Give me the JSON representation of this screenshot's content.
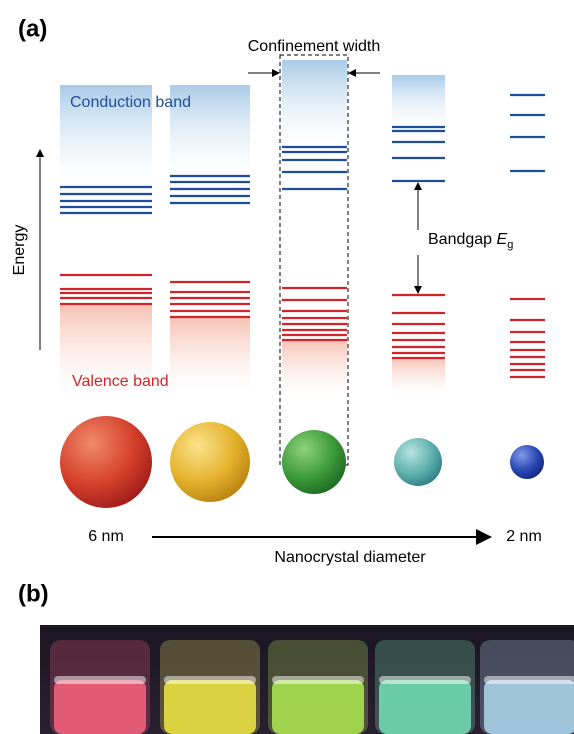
{
  "panel_a": {
    "label": "(a)",
    "confinement_label": "Confinement width",
    "conduction_label": "Conduction band",
    "valence_label": "Valence band",
    "energy_label": "Energy",
    "bandgap_label": {
      "text": "Bandgap",
      "symbol": "E",
      "subscript": "g"
    },
    "size_large": "6 nm",
    "size_small": "2 nm",
    "diameter_label": "Nanocrystal diameter"
  },
  "panel_b": {
    "label": "(b)"
  }
}
